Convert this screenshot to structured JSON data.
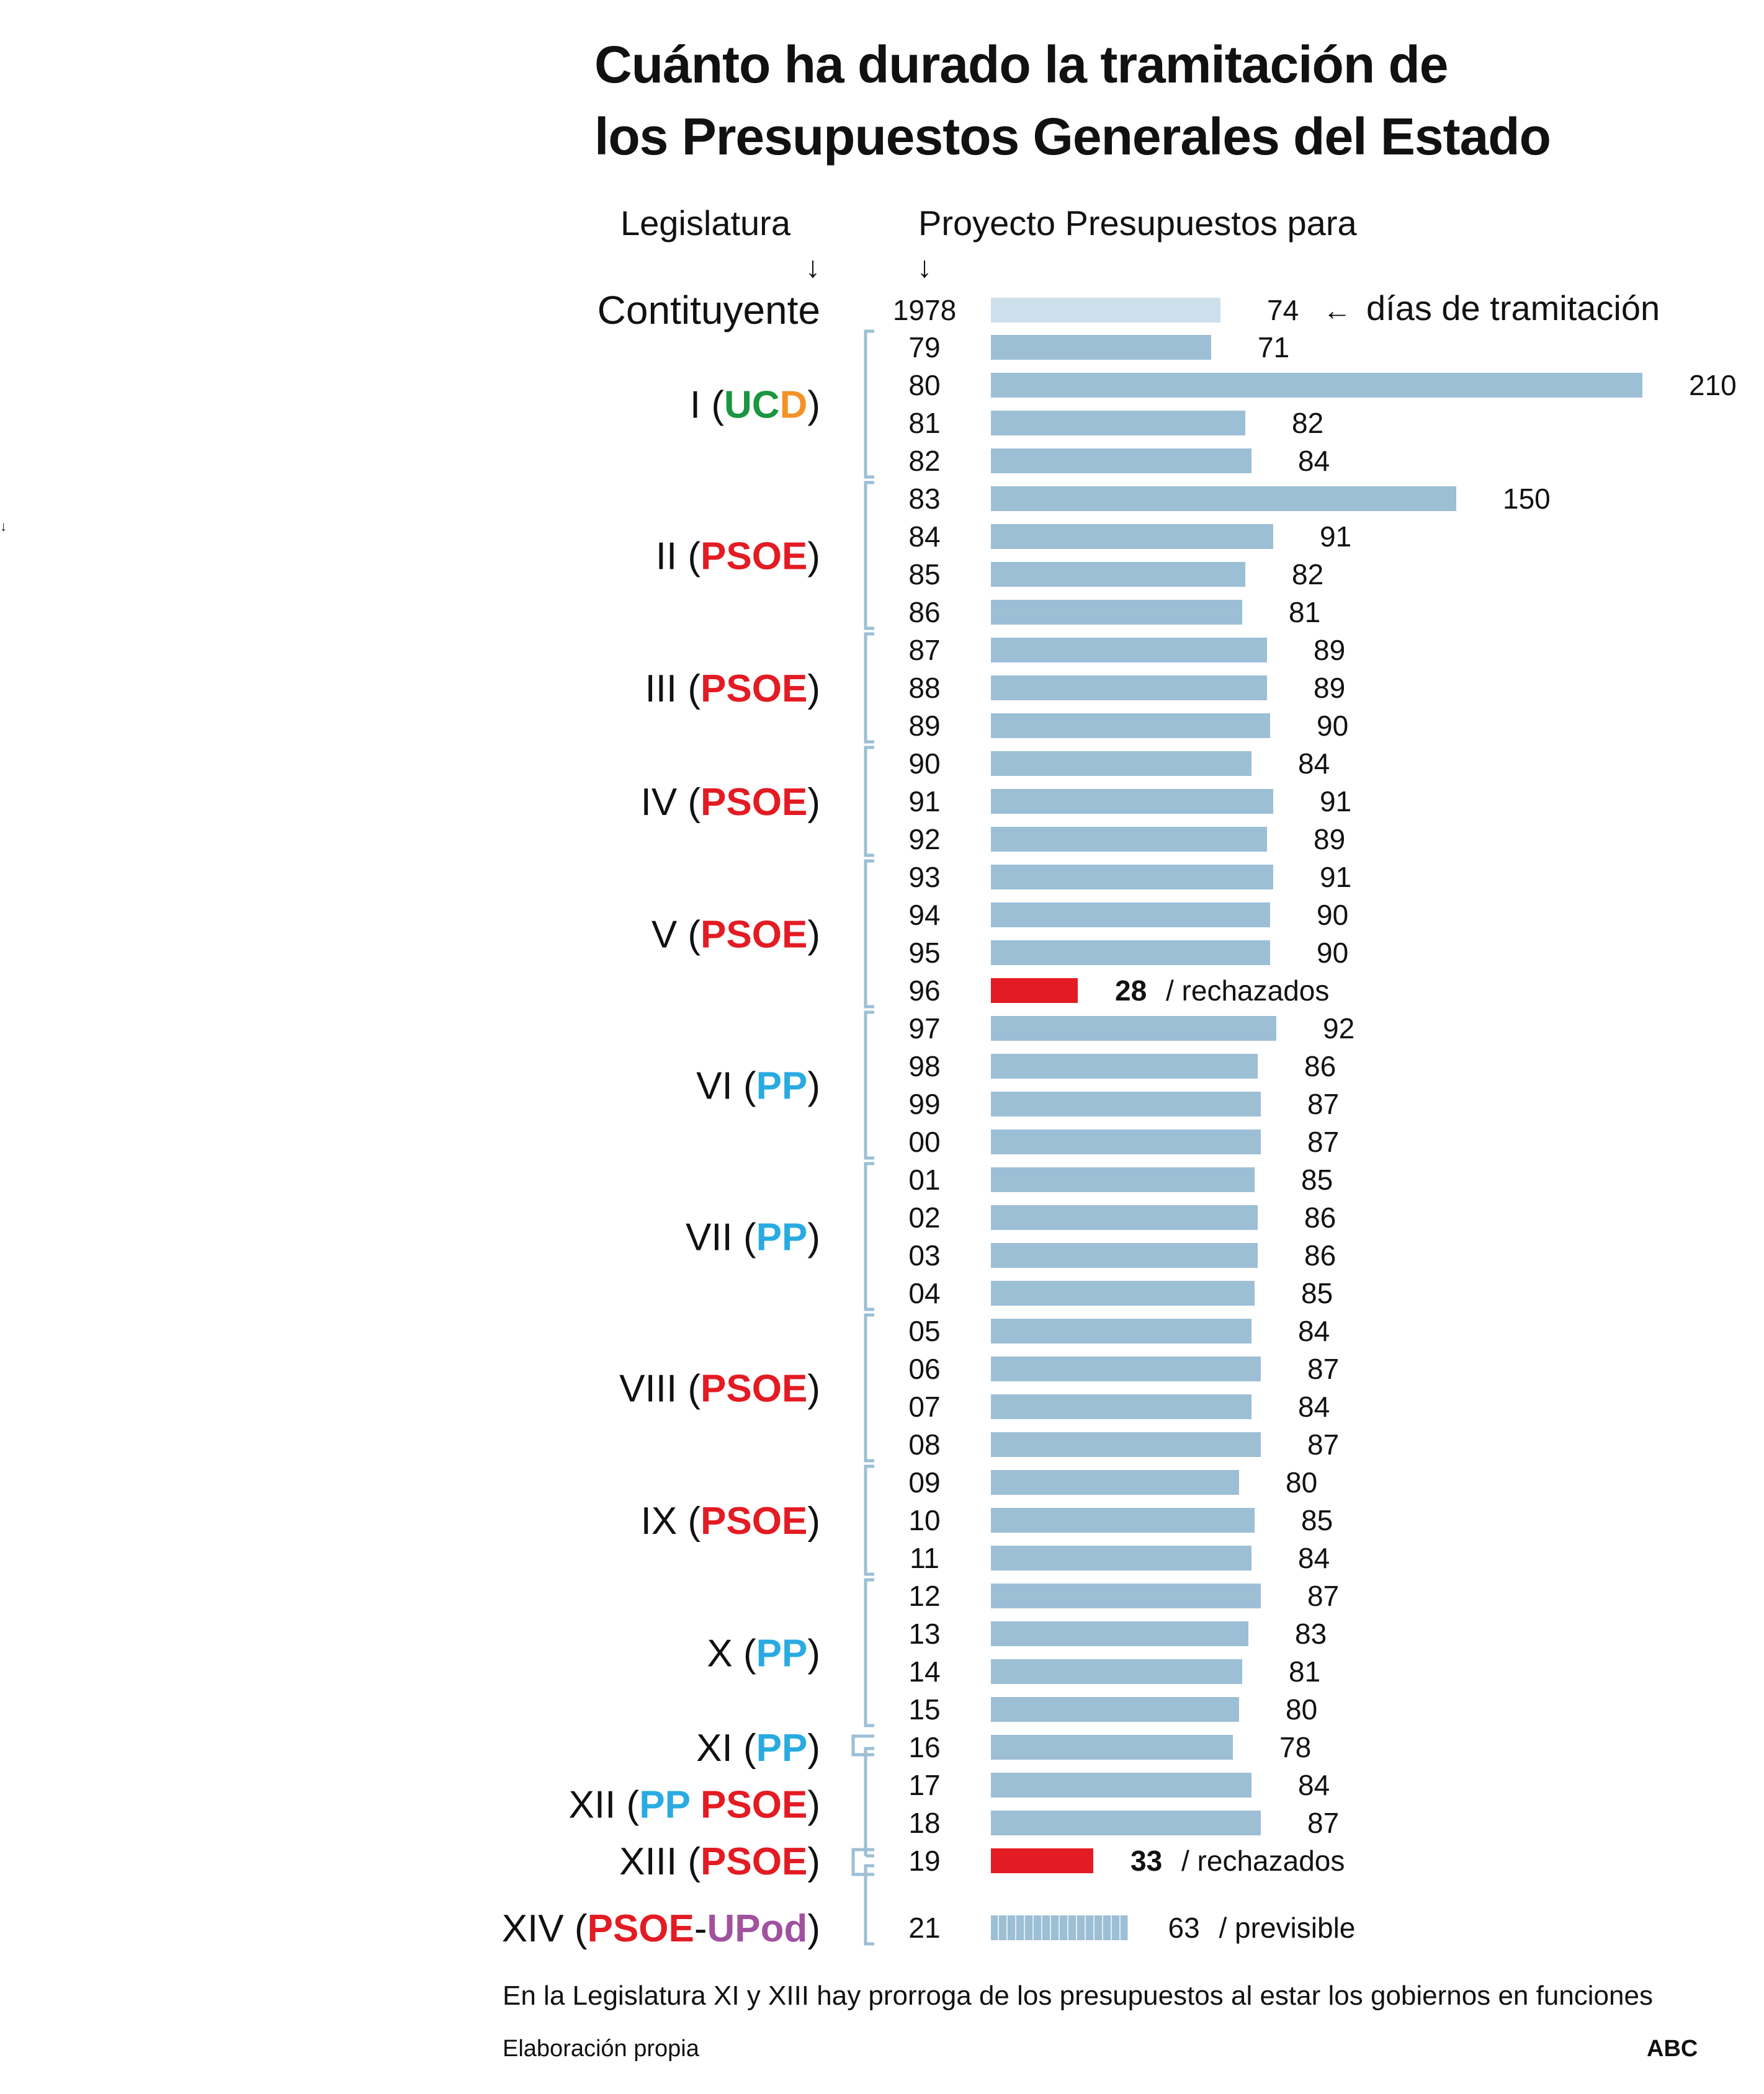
{
  "title_line1": "Cuánto ha durado la tramitación de",
  "title_line2": "los Presupuestos Generales del Estado",
  "header_legislatura": "Legislatura",
  "header_proyecto": "Proyecto Presupuestos para",
  "arrow_down": "↓",
  "legend_arrow": "←",
  "legend_text": "días de tramitación",
  "footnote": "En la Legislatura XI y XIII hay prorroga de los presupuestos al estar los gobiernos en funciones",
  "source": "Elaboración propia",
  "brand": "ABC",
  "colors": {
    "bar": "#9CBFD5",
    "bar_light": "#CDDFEA",
    "rejected": "#E31B23",
    "PSOE": "#E31B23",
    "PP": "#29ABE2",
    "UC": "#1A9641",
    "D": "#F39325",
    "UPod": "#A0529E",
    "bracket": "#9CBFD5",
    "text": "#111111"
  },
  "legislaturas": [
    {
      "numeral": "Contituyente",
      "parties": [],
      "rows": [
        "1978"
      ]
    },
    {
      "numeral": "I",
      "parties": [
        {
          "text": "UC",
          "color": "UC"
        },
        {
          "text": "D",
          "color": "D"
        }
      ],
      "rows": [
        "79",
        "80",
        "81",
        "82"
      ]
    },
    {
      "numeral": "II",
      "parties": [
        {
          "text": "PSOE",
          "color": "PSOE"
        }
      ],
      "rows": [
        "83",
        "84",
        "85",
        "86"
      ]
    },
    {
      "numeral": "III",
      "parties": [
        {
          "text": "PSOE",
          "color": "PSOE"
        }
      ],
      "rows": [
        "87",
        "88",
        "89"
      ]
    },
    {
      "numeral": "IV",
      "parties": [
        {
          "text": "PSOE",
          "color": "PSOE"
        }
      ],
      "rows": [
        "90",
        "91",
        "92"
      ]
    },
    {
      "numeral": "V",
      "parties": [
        {
          "text": "PSOE",
          "color": "PSOE"
        }
      ],
      "rows": [
        "93",
        "94",
        "95",
        "96"
      ]
    },
    {
      "numeral": "VI",
      "parties": [
        {
          "text": "PP",
          "color": "PP"
        }
      ],
      "rows": [
        "97",
        "98",
        "99",
        "00"
      ]
    },
    {
      "numeral": "VII",
      "parties": [
        {
          "text": "PP",
          "color": "PP"
        }
      ],
      "rows": [
        "01",
        "02",
        "03",
        "04"
      ]
    },
    {
      "numeral": "VIII",
      "parties": [
        {
          "text": "PSOE",
          "color": "PSOE"
        }
      ],
      "rows": [
        "05",
        "06",
        "07",
        "08"
      ]
    },
    {
      "numeral": "IX",
      "parties": [
        {
          "text": "PSOE",
          "color": "PSOE"
        }
      ],
      "rows": [
        "09",
        "10",
        "11"
      ]
    },
    {
      "numeral": "X",
      "parties": [
        {
          "text": "PP",
          "color": "PP"
        }
      ],
      "rows": [
        "12",
        "13",
        "14",
        "15"
      ]
    },
    {
      "numeral": "XI",
      "parties": [
        {
          "text": "PP",
          "color": "PP"
        }
      ],
      "rows": [
        "16"
      ]
    },
    {
      "numeral": "XII",
      "parties": [
        {
          "text": "PP",
          "color": "PP"
        },
        {
          "text": " ",
          "color": "PP"
        },
        {
          "text": "PSOE",
          "color": "PSOE"
        }
      ],
      "rows": [
        "17",
        "18"
      ]
    },
    {
      "numeral": "XIII",
      "parties": [
        {
          "text": "PSOE",
          "color": "PSOE"
        }
      ],
      "rows": [
        "19"
      ]
    },
    {
      "numeral": "XIV",
      "parties": [
        {
          "text": "PSOE",
          "color": "PSOE"
        },
        {
          "text": "-",
          "color": "text"
        },
        {
          "text": "UPod",
          "color": "UPod"
        }
      ],
      "rows": [
        "21"
      ]
    }
  ],
  "chart_data": {
    "type": "bar",
    "orientation": "horizontal",
    "title": "Cuánto ha durado la tramitación de los Presupuestos Generales del Estado",
    "xlabel": "días de tramitación",
    "ylabel": "Proyecto Presupuestos para",
    "categories": [
      "1978",
      "79",
      "80",
      "81",
      "82",
      "83",
      "84",
      "85",
      "86",
      "87",
      "88",
      "89",
      "90",
      "91",
      "92",
      "93",
      "94",
      "95",
      "96",
      "97",
      "98",
      "99",
      "00",
      "01",
      "02",
      "03",
      "04",
      "05",
      "06",
      "07",
      "08",
      "09",
      "10",
      "11",
      "12",
      "13",
      "14",
      "15",
      "16",
      "17",
      "18",
      "19",
      "21"
    ],
    "values": [
      74,
      71,
      210,
      82,
      84,
      150,
      91,
      82,
      81,
      89,
      89,
      90,
      84,
      91,
      89,
      91,
      90,
      90,
      28,
      92,
      86,
      87,
      87,
      85,
      86,
      86,
      85,
      84,
      87,
      84,
      87,
      80,
      85,
      84,
      87,
      83,
      81,
      80,
      78,
      84,
      87,
      33,
      63
    ],
    "status": [
      "light",
      "normal",
      "normal",
      "normal",
      "normal",
      "normal",
      "normal",
      "normal",
      "normal",
      "normal",
      "normal",
      "normal",
      "normal",
      "normal",
      "normal",
      "normal",
      "normal",
      "normal",
      "rechazados",
      "normal",
      "normal",
      "normal",
      "normal",
      "normal",
      "normal",
      "normal",
      "normal",
      "normal",
      "normal",
      "normal",
      "normal",
      "normal",
      "normal",
      "normal",
      "normal",
      "normal",
      "normal",
      "normal",
      "normal",
      "normal",
      "normal",
      "rechazados",
      "previsible"
    ],
    "annotations": {
      "rechazados": "/ rechazados",
      "previsible": "/ previsible"
    },
    "grid": false,
    "legend": "none"
  }
}
